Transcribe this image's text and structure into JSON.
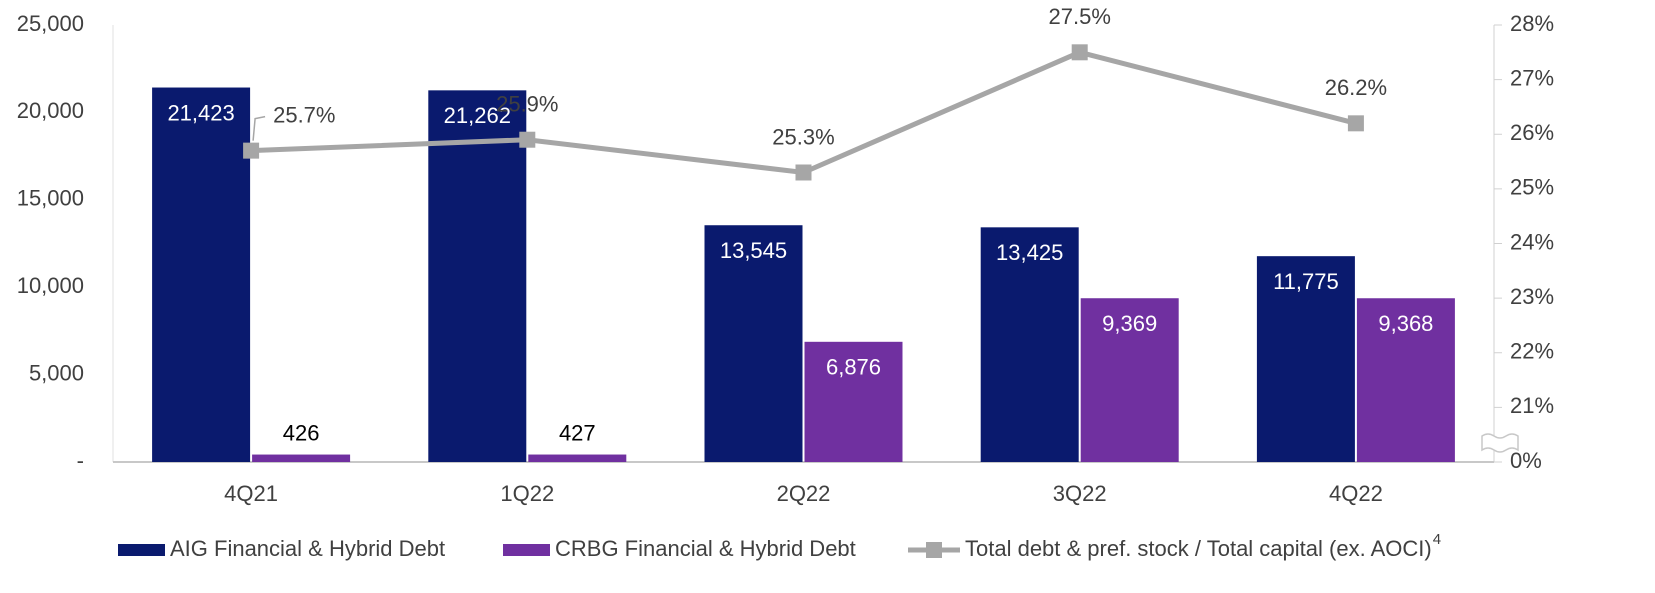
{
  "chart_data": {
    "type": "bar_line",
    "categories": [
      "4Q21",
      "1Q22",
      "2Q22",
      "3Q22",
      "4Q22"
    ],
    "series": [
      {
        "name": "AIG Financial & Hybrid Debt",
        "type": "bar",
        "color": "#0a1a6e",
        "values": [
          21423,
          21262,
          13545,
          13425,
          11775
        ],
        "value_labels": [
          "21,423",
          "21,262",
          "13,545",
          "13,425",
          "11,775"
        ]
      },
      {
        "name": "CRBG Financial & Hybrid Debt",
        "type": "bar",
        "color": "#7030a0",
        "values": [
          426,
          427,
          6876,
          9369,
          9368
        ],
        "value_labels": [
          "426",
          "427",
          "6,876",
          "9,369",
          "9,368"
        ]
      },
      {
        "name": "Total debt & pref. stock / Total capital (ex. AOCI)",
        "footnote_marker": "4",
        "type": "line",
        "axis": "y2",
        "color": "#a6a6a6",
        "values": [
          25.7,
          25.9,
          25.3,
          27.5,
          26.2
        ],
        "value_labels": [
          "25.7%",
          "25.9%",
          "25.3%",
          "27.5%",
          "26.2%"
        ]
      }
    ],
    "ylim": [
      0,
      25000
    ],
    "yticks": [
      {
        "value": 0,
        "label": "-"
      },
      {
        "value": 5000,
        "label": "5,000"
      },
      {
        "value": 10000,
        "label": "10,000"
      },
      {
        "value": 15000,
        "label": "15,000"
      },
      {
        "value": 20000,
        "label": "20,000"
      },
      {
        "value": 25000,
        "label": "25,000"
      }
    ],
    "y2lim": [
      0,
      28
    ],
    "y2break": [
      0,
      20
    ],
    "y2ticks": [
      {
        "value": 0,
        "label": "0%"
      },
      {
        "value": 21,
        "label": "21%"
      },
      {
        "value": 22,
        "label": "22%"
      },
      {
        "value": 23,
        "label": "23%"
      },
      {
        "value": 24,
        "label": "24%"
      },
      {
        "value": 25,
        "label": "25%"
      },
      {
        "value": 26,
        "label": "26%"
      },
      {
        "value": 27,
        "label": "27%"
      },
      {
        "value": 28,
        "label": "28%"
      }
    ],
    "legend": "bottom"
  }
}
